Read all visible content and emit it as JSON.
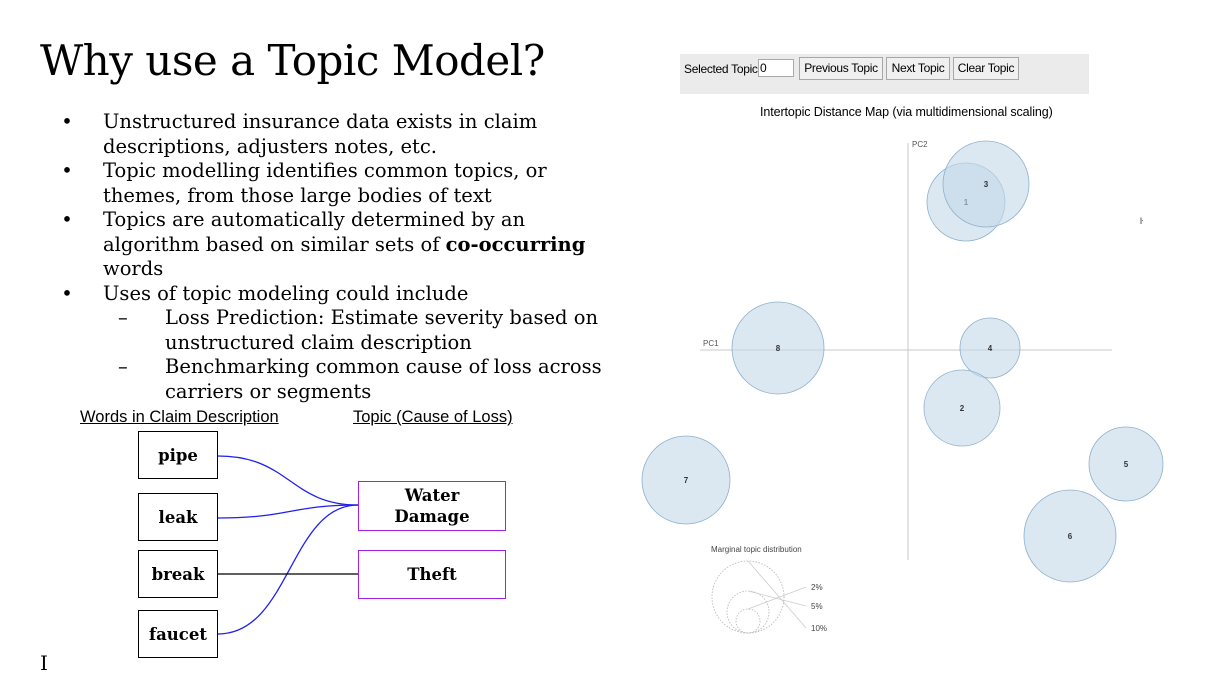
{
  "slide": {
    "title": "Why use a Topic Model?",
    "bullets": [
      "Unstructured insurance data exists in claim descriptions, adjusters notes, etc.",
      "Topic modelling identifies common topics, or themes, from those large bodies of text",
      "Topics are automatically determined by an algorithm based on similar sets of ",
      "Uses of topic modeling could include"
    ],
    "bullet3_bold": "co-occurring",
    "bullet3_tail": " words",
    "sub_bullets": [
      "Loss Prediction: Estimate severity based on unstructured claim description",
      "Benchmarking common cause of loss across carriers or segments"
    ],
    "bullet_symbol": "•",
    "dash_symbol": "–",
    "stray_mark_right": "ŀ",
    "stray_mark_bottom": "I"
  },
  "diagram": {
    "header_words": "Words in Claim Description",
    "header_topics": "Topic (Cause of Loss)",
    "words": [
      "pipe",
      "leak",
      "break",
      "faucet"
    ],
    "topics": [
      "Water Damage",
      "Theft"
    ],
    "colors": {
      "water_links": "#1f1ff0",
      "theft_link": "#000000",
      "topic_border": "#a31fe0"
    }
  },
  "ldavis": {
    "selected_topic_label": "Selected Topic:",
    "selected_topic_value": "0",
    "buttons": {
      "previous": "Previous Topic",
      "next": "Next Topic",
      "clear": "Clear Topic"
    },
    "map_title": "Intertopic Distance Map (via multidimensional scaling)",
    "axes": {
      "pc1": "PC1",
      "pc2": "PC2"
    },
    "topics": [
      {
        "label": "1",
        "pc1": 0.145,
        "pc2": 0.37
      },
      {
        "label": "3",
        "pc1": 0.195,
        "pc2": 0.415
      },
      {
        "label": "4",
        "pc1": 0.205,
        "pc2": 0.005
      },
      {
        "label": "2",
        "pc1": 0.135,
        "pc2": -0.145
      },
      {
        "label": "8",
        "pc1": -0.325,
        "pc2": 0.005
      },
      {
        "label": "7",
        "pc1": -0.555,
        "pc2": -0.325
      },
      {
        "label": "5",
        "pc1": 0.545,
        "pc2": -0.285
      },
      {
        "label": "6",
        "pc1": 0.405,
        "pc2": -0.465
      }
    ],
    "marginal": {
      "title": "Marginal topic distribution",
      "levels": [
        "2%",
        "5%",
        "10%"
      ]
    },
    "bubble_color": "#c3d8ea",
    "bubble_stroke": "#8fb0cc"
  }
}
